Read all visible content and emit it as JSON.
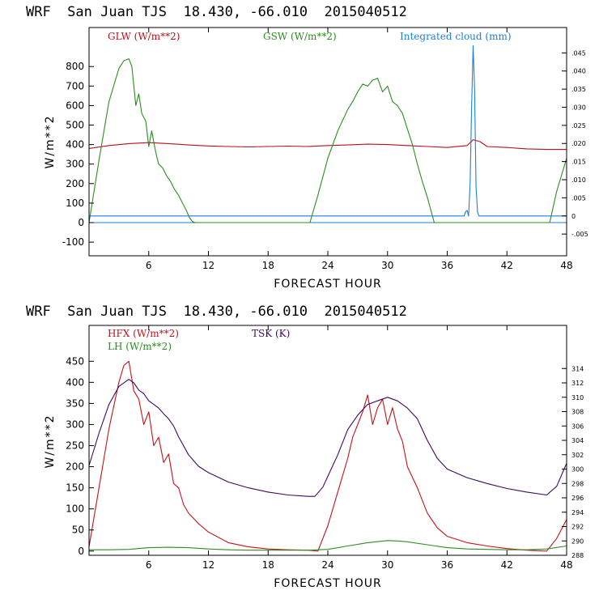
{
  "chart_data": [
    {
      "type": "line",
      "title": "WRF  San Juan TJS  18.430, -66.010  2015040512",
      "xlabel": "FORECAST HOUR",
      "ylabel": "W/m**2",
      "xlim": [
        0,
        48
      ],
      "ylim": [
        -170,
        1000
      ],
      "xticks": [
        6,
        12,
        18,
        24,
        30,
        36,
        42,
        48
      ],
      "yticks": [
        -100,
        0,
        100,
        200,
        300,
        400,
        500,
        600,
        700,
        800
      ],
      "y2lim": [
        -0.011,
        0.052
      ],
      "y2ticks": [
        -0.005,
        0,
        0.005,
        0.01,
        0.015,
        0.02,
        0.025,
        0.03,
        0.035,
        0.04,
        0.045
      ],
      "y2ticklabels": [
        "-.005",
        "0",
        ".005",
        ".010",
        ".015",
        ".020",
        ".025",
        ".030",
        ".035",
        ".040",
        ".045"
      ],
      "series": [
        {
          "name": "GLW (W/m**2)",
          "color": "#b5121b",
          "axis": "left",
          "x": [
            0,
            2,
            4,
            6,
            8,
            10,
            12,
            14,
            16,
            18,
            20,
            22,
            24,
            26,
            28,
            30,
            32,
            34,
            36,
            38,
            38.6,
            39.3,
            40,
            42,
            44,
            46,
            48
          ],
          "values": [
            380,
            395,
            405,
            410,
            405,
            398,
            393,
            390,
            388,
            390,
            392,
            390,
            395,
            398,
            402,
            400,
            395,
            390,
            385,
            395,
            425,
            415,
            390,
            385,
            378,
            375,
            375
          ]
        },
        {
          "name": "GSW (W/m**2)",
          "color": "#2e8b22",
          "axis": "left",
          "x": [
            0,
            1,
            2,
            3,
            3.5,
            4,
            4.3,
            4.7,
            5,
            5.3,
            5.7,
            6,
            6.3,
            6.7,
            7,
            7.4,
            7.8,
            8.2,
            8.6,
            9,
            9.4,
            9.8,
            10.1,
            10.4,
            10.7,
            22.2,
            23,
            24,
            25,
            26,
            26.5,
            27,
            27.5,
            28,
            28.5,
            29,
            29.5,
            30,
            30.5,
            31,
            31.5,
            32,
            32.5,
            33,
            33.5,
            34,
            34.7,
            46.3,
            47,
            48
          ],
          "values": [
            0,
            320,
            620,
            790,
            830,
            840,
            800,
            600,
            660,
            560,
            520,
            390,
            470,
            360,
            300,
            280,
            240,
            210,
            170,
            140,
            100,
            60,
            25,
            5,
            0,
            0,
            140,
            330,
            470,
            580,
            620,
            670,
            710,
            700,
            730,
            740,
            670,
            700,
            620,
            600,
            560,
            480,
            400,
            300,
            210,
            130,
            0,
            0,
            160,
            330
          ]
        },
        {
          "name": "Integrated cloud (mm)",
          "color": "#1e7fd6",
          "axis": "right",
          "x": [
            0,
            37.7,
            37.85,
            38.0,
            38.15,
            38.3,
            38.45,
            38.6,
            38.75,
            38.9,
            39.05,
            39.2,
            48
          ],
          "values": [
            0,
            0,
            0.0012,
            0.0015,
            0,
            0.009,
            0.03,
            0.047,
            0.035,
            0.008,
            0.001,
            0,
            0
          ]
        }
      ]
    },
    {
      "type": "line",
      "title": "WRF  San Juan TJS  18.430, -66.010  2015040512",
      "xlabel": "FORECAST HOUR",
      "ylabel": "W/m**2",
      "xlim": [
        0,
        48
      ],
      "ylim": [
        -10,
        535
      ],
      "xticks": [
        6,
        12,
        18,
        24,
        30,
        36,
        42,
        48
      ],
      "yticks": [
        0,
        50,
        100,
        150,
        200,
        250,
        300,
        350,
        400,
        450
      ],
      "y2lim": [
        288,
        320
      ],
      "y2ticks": [
        288,
        290,
        292,
        294,
        296,
        298,
        300,
        302,
        304,
        306,
        308,
        310,
        312,
        314
      ],
      "y2ticklabels": [
        "288",
        "290",
        "292",
        "294",
        "296",
        "298",
        "300",
        "302",
        "304",
        "306",
        "308",
        "310",
        "312",
        "314"
      ],
      "series": [
        {
          "name": "HFX (W/m**2)",
          "color": "#c41218",
          "axis": "left",
          "x": [
            0,
            1,
            2,
            3,
            3.5,
            4,
            4.5,
            5,
            5.5,
            6,
            6.5,
            7,
            7.5,
            8,
            8.5,
            9,
            9.5,
            10,
            11,
            12,
            14,
            16,
            18,
            20,
            22,
            23,
            24,
            25,
            26,
            26.5,
            27,
            27.5,
            28,
            28.5,
            29,
            29.5,
            30,
            30.5,
            31,
            31.5,
            32,
            33,
            34,
            35,
            36,
            38,
            40,
            42,
            44,
            46,
            47,
            48
          ],
          "values": [
            10,
            150,
            290,
            400,
            440,
            450,
            380,
            360,
            300,
            330,
            250,
            270,
            210,
            230,
            160,
            150,
            110,
            90,
            65,
            45,
            20,
            10,
            5,
            3,
            2,
            0,
            60,
            140,
            220,
            270,
            300,
            330,
            370,
            300,
            340,
            360,
            300,
            340,
            290,
            260,
            200,
            150,
            90,
            55,
            35,
            20,
            12,
            6,
            2,
            0,
            30,
            75
          ]
        },
        {
          "name": "LH (W/m**2)",
          "color": "#2e8b22",
          "axis": "left",
          "x": [
            0,
            2,
            4,
            6,
            8,
            10,
            12,
            14,
            16,
            18,
            20,
            22,
            24,
            26,
            28,
            30,
            31,
            32,
            34,
            36,
            38,
            40,
            42,
            44,
            46,
            48
          ],
          "values": [
            3,
            3,
            4,
            8,
            9,
            8,
            5,
            3,
            2,
            2,
            2,
            2,
            4,
            12,
            20,
            25,
            24,
            22,
            15,
            8,
            5,
            4,
            3,
            3,
            5,
            12
          ]
        },
        {
          "name": "TSK (K)",
          "color": "#3d0a5c",
          "axis": "right",
          "x": [
            0,
            1,
            2,
            3,
            4,
            4.5,
            5,
            5.5,
            6,
            6.5,
            7,
            7.5,
            8,
            8.5,
            9,
            10,
            11,
            12,
            14,
            16,
            18,
            20,
            22,
            22.7,
            23.5,
            24,
            25,
            26,
            27,
            28,
            29,
            30,
            31,
            32,
            33,
            34,
            35,
            36,
            38,
            40,
            42,
            44,
            46,
            47,
            48
          ],
          "values": [
            300.5,
            305,
            309,
            311.5,
            312.5,
            312,
            311,
            310.5,
            309.5,
            309,
            308.5,
            307.7,
            307,
            306,
            304.5,
            302,
            300.4,
            299.5,
            298.2,
            297.4,
            296.8,
            296.4,
            296.2,
            296.2,
            297.5,
            299,
            302,
            305.5,
            307.5,
            309,
            309.5,
            310,
            309.5,
            308.5,
            307,
            304,
            301.5,
            300,
            298.8,
            298,
            297.3,
            296.8,
            296.4,
            297.6,
            300.8
          ]
        }
      ]
    }
  ]
}
